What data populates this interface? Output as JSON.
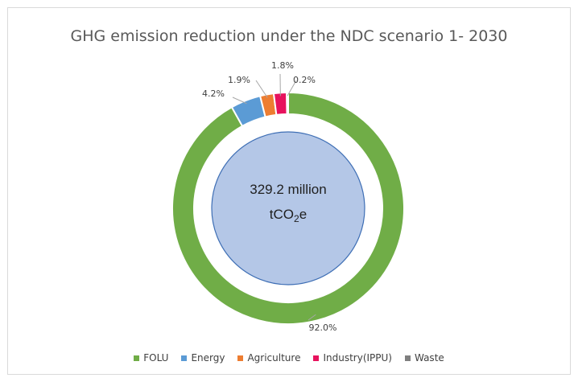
{
  "chart_data": {
    "type": "pie",
    "title": "GHG emission reduction under the NDC scenario 1- 2030",
    "center_value": "329.2 million",
    "center_unit_main": "tCO",
    "center_unit_sub": "2",
    "center_unit_end": "e",
    "categories": [
      "FOLU",
      "Energy",
      "Agriculture",
      "Industry(IPPU)",
      "Waste"
    ],
    "values": [
      92.0,
      4.2,
      1.9,
      1.8,
      0.2
    ],
    "labels": [
      "92.0%",
      "4.2%",
      "1.9%",
      "1.8%",
      "0.2%"
    ],
    "colors": [
      "#70ad47",
      "#5b9bd5",
      "#ed7d31",
      "#e7125d",
      "#7f7f7f"
    ],
    "legend_position": "bottom"
  }
}
